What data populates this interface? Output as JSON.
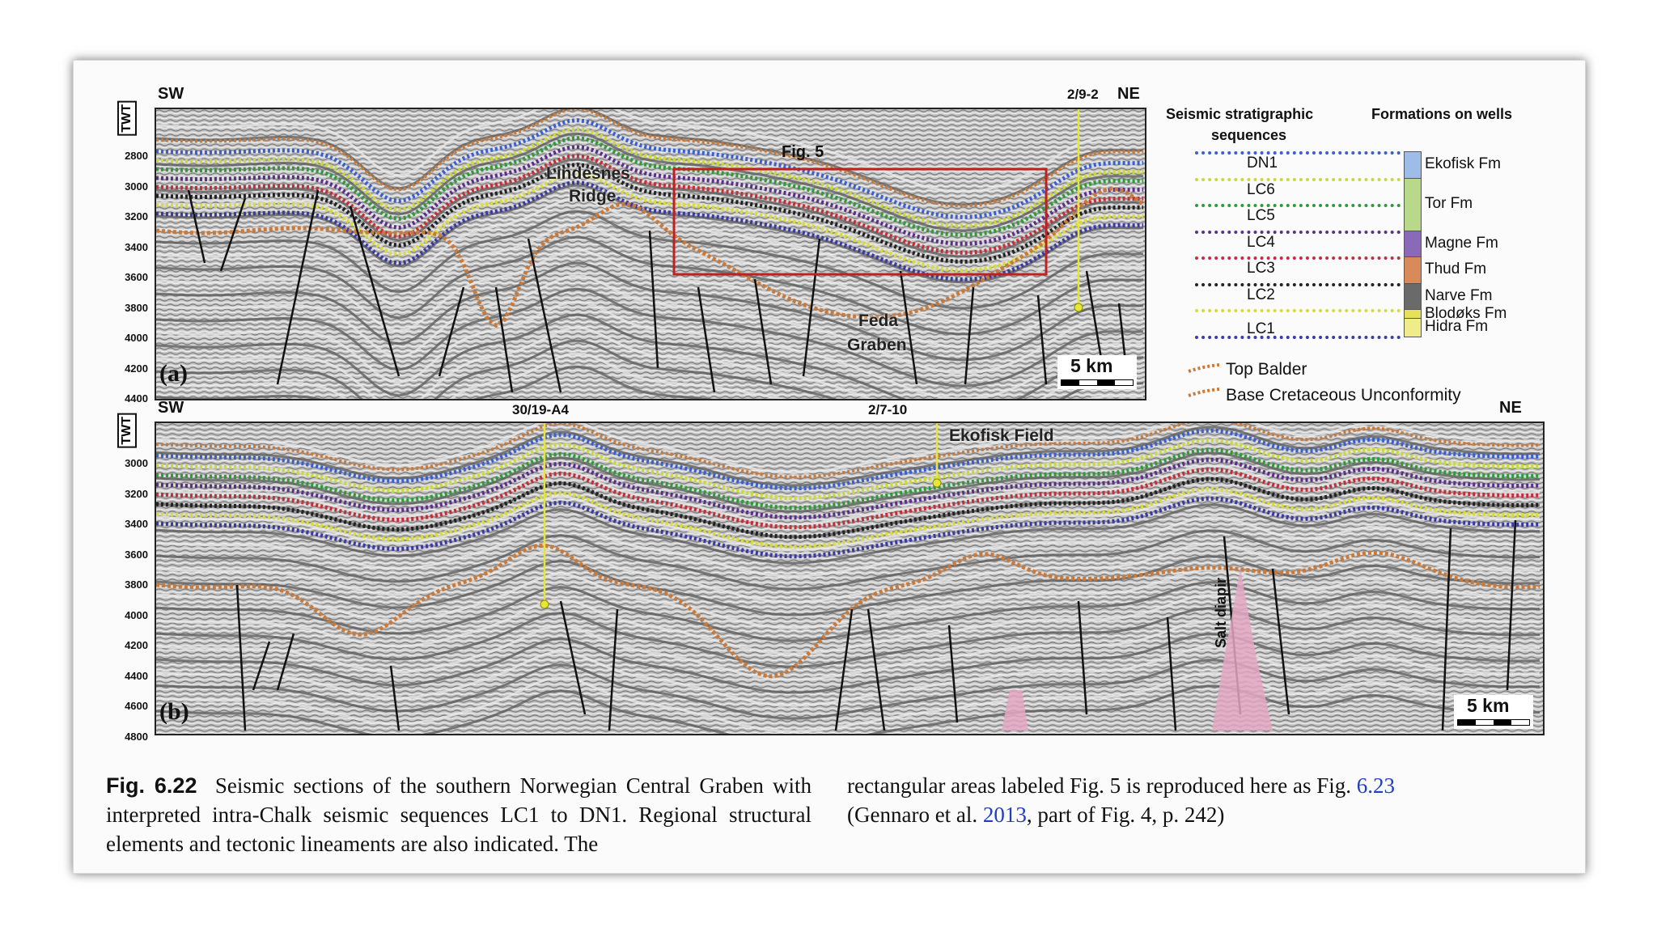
{
  "panel_a": {
    "left_dir": "SW",
    "right_dir": "NE",
    "well": "2/9-2",
    "axis_label": "TWT",
    "ticks": [
      "2800",
      "3000",
      "3200",
      "3400",
      "3600",
      "3800",
      "4000",
      "4200",
      "4400"
    ],
    "panel_label": "(a)",
    "box_label": "Fig. 5",
    "feature_1": "Lindesnes",
    "feature_1b": "Ridge",
    "feature_2": "Feda",
    "feature_2b": "Graben",
    "scale": "5 km"
  },
  "panel_b": {
    "left_dir": "SW",
    "right_dir": "NE",
    "well_1": "30/19-A4",
    "well_2": "2/7-10",
    "field": "Ekofisk Field",
    "axis_label": "TWT",
    "ticks": [
      "3000",
      "3200",
      "3400",
      "3600",
      "3800",
      "4000",
      "4200",
      "4400",
      "4600",
      "4800"
    ],
    "panel_label": "(b)",
    "salt": "Salt diapir",
    "scale": "5 km"
  },
  "legend": {
    "heading_left": "Seismic stratigraphic",
    "heading_left_2": "sequences",
    "heading_right": "Formations on wells",
    "sequences": [
      "DN1",
      "LC6",
      "LC5",
      "LC4",
      "LC3",
      "LC2",
      "LC1"
    ],
    "line_colors": [
      "#3a5fd0",
      "#c9d83a",
      "#2f9a3a",
      "#5a2f8a",
      "#c0303a",
      "#222222",
      "#d8dc3a",
      "#3a3aa0"
    ],
    "formations": [
      {
        "name": "Ekofisk Fm",
        "color": "#9dbde8"
      },
      {
        "name": "Tor Fm",
        "color": "#b8d98a"
      },
      {
        "name": "Magne Fm",
        "color": "#8a6ab8"
      },
      {
        "name": "Thud Fm",
        "color": "#d98a5a"
      },
      {
        "name": "Narve Fm",
        "color": "#6a6a6a"
      },
      {
        "name": "Blodøks Fm",
        "color": "#e8e05a"
      },
      {
        "name": "Hidra Fm",
        "color": "#f0ec8a"
      }
    ],
    "top_balder": "Top Balder",
    "bcu": "Base Cretaceous Unconformity"
  },
  "caption": {
    "fig": "Fig. 6.22",
    "col1": "Seismic sections of the southern Norwegian Central Graben with interpreted intra-Chalk seismic sequences LC1 to DN1. Regional structural elements and tectonic lineaments are also indicated. The",
    "col2_a": "rectangular areas labeled Fig. 5 is reproduced here as Fig.",
    "col2_link": "6.23",
    "col2_b": "(Gennaro et al.",
    "col2_year": "2013",
    "col2_c": ", part of Fig. 4, p. 242)"
  }
}
